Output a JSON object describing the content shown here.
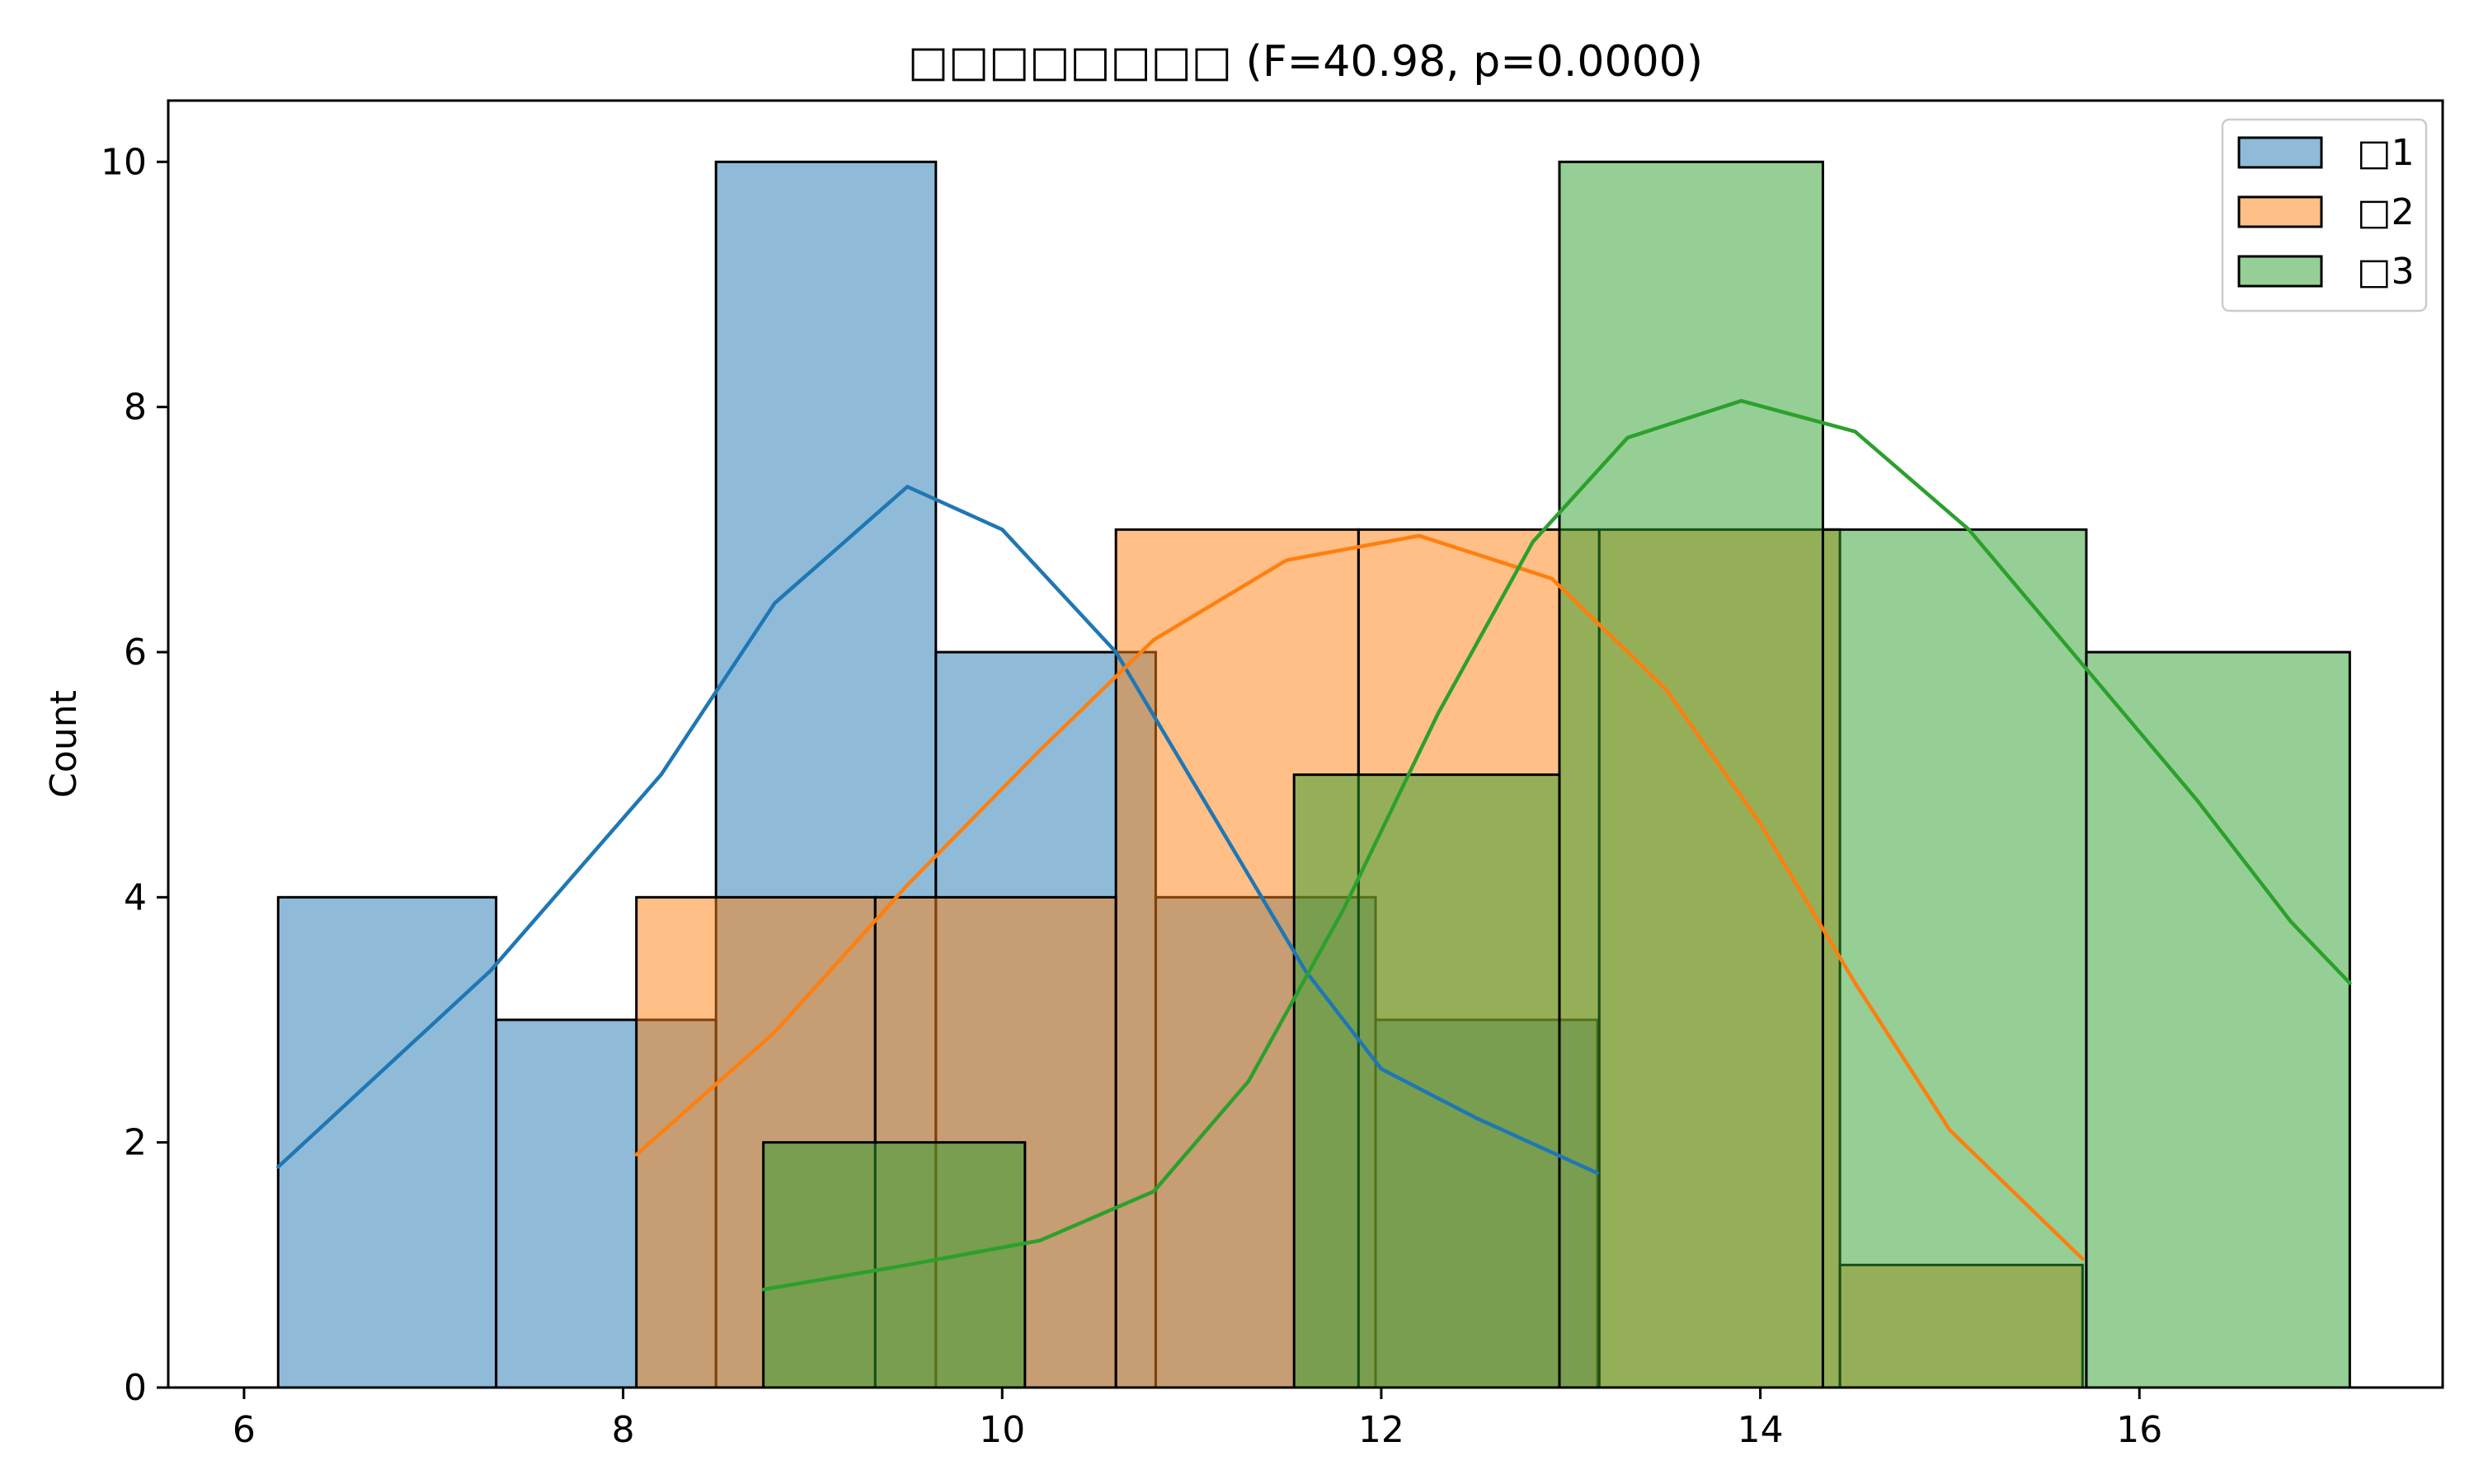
{
  "chart_data": {
    "type": "histogram",
    "title": "□□□□□□□□ (F=40.98, p=0.0000)",
    "xlabel": "",
    "ylabel": "Count",
    "xlim": [
      5.6,
      17.6
    ],
    "ylim": [
      0,
      10.5
    ],
    "xticks": [
      "6",
      "8",
      "10",
      "12",
      "14",
      "16"
    ],
    "yticks": [
      "0",
      "2",
      "4",
      "6",
      "8",
      "10"
    ],
    "grid": false,
    "legend_position": "top-right",
    "series": [
      {
        "name": "□1",
        "color": "#1f77b4",
        "bins": [
          {
            "start": 6.18,
            "end": 7.33,
            "count": 4
          },
          {
            "start": 7.33,
            "end": 8.49,
            "count": 3
          },
          {
            "start": 8.49,
            "end": 9.65,
            "count": 10
          },
          {
            "start": 9.65,
            "end": 10.81,
            "count": 6
          },
          {
            "start": 10.81,
            "end": 11.97,
            "count": 4
          },
          {
            "start": 11.97,
            "end": 13.14,
            "count": 3
          }
        ],
        "kde": [
          [
            6.18,
            1.8
          ],
          [
            7.3,
            3.4
          ],
          [
            8.2,
            5.0
          ],
          [
            8.8,
            6.4
          ],
          [
            9.5,
            7.35
          ],
          [
            10.0,
            7.0
          ],
          [
            10.6,
            6.0
          ],
          [
            11.1,
            4.7
          ],
          [
            11.6,
            3.4
          ],
          [
            12.0,
            2.6
          ],
          [
            12.5,
            2.2
          ],
          [
            13.14,
            1.75
          ]
        ]
      },
      {
        "name": "□2",
        "color": "#ff7f0e",
        "bins": [
          {
            "start": 8.07,
            "end": 9.33,
            "count": 4
          },
          {
            "start": 9.33,
            "end": 10.6,
            "count": 4
          },
          {
            "start": 10.6,
            "end": 11.88,
            "count": 7
          },
          {
            "start": 11.88,
            "end": 13.15,
            "count": 7
          },
          {
            "start": 13.15,
            "end": 14.42,
            "count": 7
          },
          {
            "start": 14.42,
            "end": 15.7,
            "count": 1
          }
        ],
        "kde": [
          [
            8.07,
            1.9
          ],
          [
            8.8,
            2.9
          ],
          [
            9.5,
            4.1
          ],
          [
            10.2,
            5.2
          ],
          [
            10.8,
            6.1
          ],
          [
            11.5,
            6.75
          ],
          [
            12.2,
            6.95
          ],
          [
            12.9,
            6.6
          ],
          [
            13.5,
            5.7
          ],
          [
            14.0,
            4.6
          ],
          [
            14.5,
            3.3
          ],
          [
            15.0,
            2.1
          ],
          [
            15.7,
            1.05
          ]
        ]
      },
      {
        "name": "□3",
        "color": "#2ca02c",
        "bins": [
          {
            "start": 8.74,
            "end": 10.12,
            "count": 2
          },
          {
            "start": 10.12,
            "end": 11.54,
            "count": 0
          },
          {
            "start": 11.54,
            "end": 12.94,
            "count": 5
          },
          {
            "start": 12.94,
            "end": 14.33,
            "count": 10
          },
          {
            "start": 14.33,
            "end": 15.72,
            "count": 7
          },
          {
            "start": 15.72,
            "end": 17.11,
            "count": 6
          }
        ],
        "kde": [
          [
            8.74,
            0.8
          ],
          [
            9.5,
            1.0
          ],
          [
            10.2,
            1.2
          ],
          [
            10.8,
            1.6
          ],
          [
            11.3,
            2.5
          ],
          [
            11.8,
            3.9
          ],
          [
            12.3,
            5.5
          ],
          [
            12.8,
            6.9
          ],
          [
            13.3,
            7.75
          ],
          [
            13.9,
            8.05
          ],
          [
            14.5,
            7.8
          ],
          [
            15.1,
            7.0
          ],
          [
            15.7,
            5.9
          ],
          [
            16.3,
            4.8
          ],
          [
            16.8,
            3.8
          ],
          [
            17.11,
            3.3
          ]
        ]
      }
    ]
  }
}
